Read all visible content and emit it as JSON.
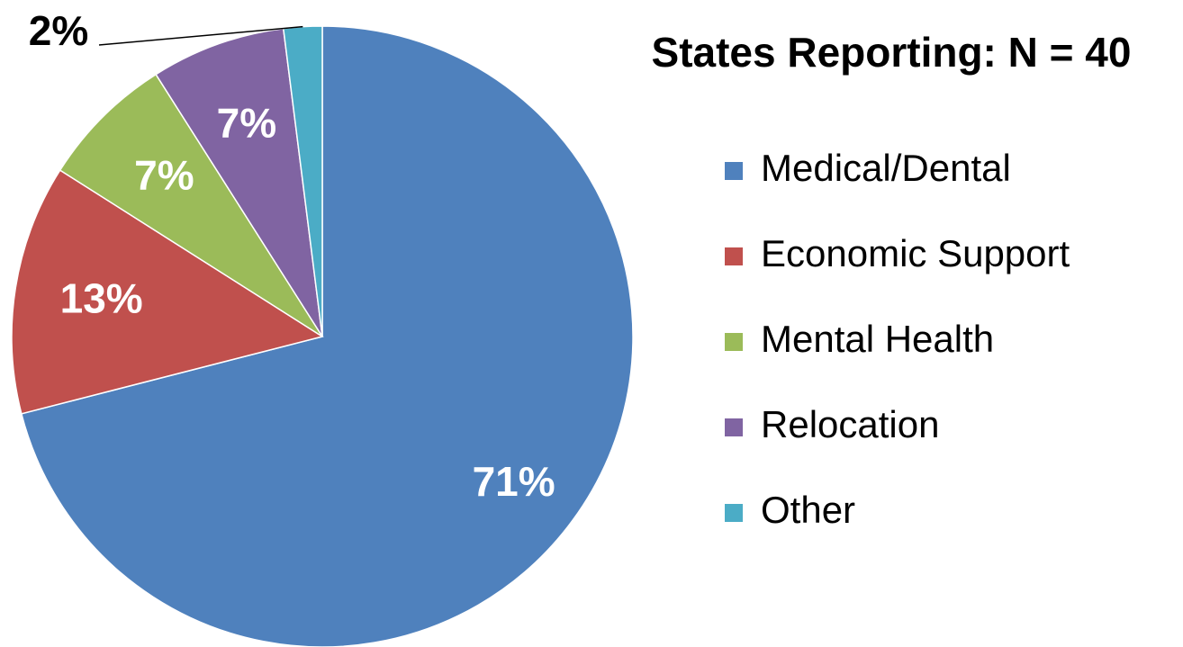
{
  "chart_data": {
    "type": "pie",
    "title": "States Reporting: N = 40",
    "categories": [
      "Medical/Dental",
      "Economic Support",
      "Mental Health",
      "Relocation",
      "Other"
    ],
    "values": [
      71,
      13,
      7,
      7,
      2
    ],
    "value_labels": [
      "71%",
      "13%",
      "7%",
      "7%",
      "2%"
    ],
    "colors": [
      "#4f81bd",
      "#c0504d",
      "#9bbb59",
      "#8064a2",
      "#4bacc6"
    ],
    "legend": "right"
  }
}
